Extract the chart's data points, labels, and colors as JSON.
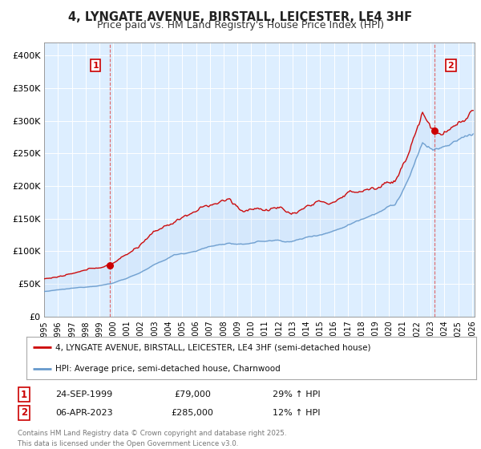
{
  "title": "4, LYNGATE AVENUE, BIRSTALL, LEICESTER, LE4 3HF",
  "subtitle": "Price paid vs. HM Land Registry's House Price Index (HPI)",
  "ylabel_ticks": [
    "£0",
    "£50K",
    "£100K",
    "£150K",
    "£200K",
    "£250K",
    "£300K",
    "£350K",
    "£400K"
  ],
  "ytick_values": [
    0,
    50000,
    100000,
    150000,
    200000,
    250000,
    300000,
    350000,
    400000
  ],
  "ylim": [
    0,
    420000
  ],
  "xlim_start": 1995.0,
  "xlim_end": 2026.2,
  "sale1": {
    "date": "24-SEP-1999",
    "price": 79000,
    "label": "1",
    "x": 1999.73,
    "hpi_pct": "29% ↑ HPI"
  },
  "sale2": {
    "date": "06-APR-2023",
    "price": 285000,
    "label": "2",
    "x": 2023.27,
    "hpi_pct": "12% ↑ HPI"
  },
  "legend_red": "4, LYNGATE AVENUE, BIRSTALL, LEICESTER, LE4 3HF (semi-detached house)",
  "legend_blue": "HPI: Average price, semi-detached house, Charnwood",
  "footer": "Contains HM Land Registry data © Crown copyright and database right 2025.\nThis data is licensed under the Open Government Licence v3.0.",
  "red_color": "#cc0000",
  "blue_color": "#6699cc",
  "vline_color": "#dd4444",
  "background_chart": "#ddeeff",
  "background_fig": "#ffffff",
  "grid_color": "#ffffff",
  "title_fontsize": 10.5,
  "subtitle_fontsize": 9.0
}
